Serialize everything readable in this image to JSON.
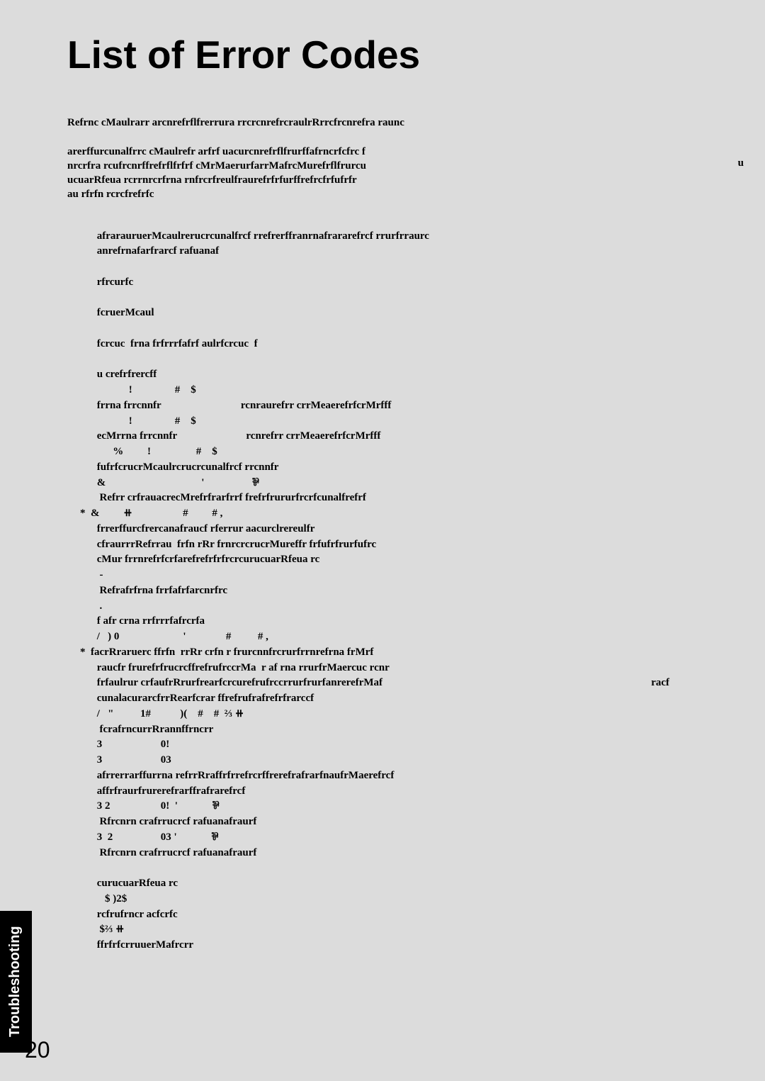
{
  "title": "List of Error Codes",
  "intro1": "Refrnc  cMaulrarr arcnrefrflfrerrura rrcrcnrefrcraulrRrrcfrcnrefra raunc",
  "intro2": "arerffurcunalfrrc  cMaulrefr arfrf uacurcnrefrflfrurffafrncrfcfrc f\nnrcrfra rcufrcnrffrefrflfrfrf cMrMaerurfarrMafrcMurefrflfrurcu\nucuarRfeua rcrrnrcrfrna rnfrcrfreulfraurefrfrfurffrefrcfrfufrfr\nau  rfrfn rcrcfrefrfc",
  "intro_right": "u",
  "lines": [
    " afrarauruerMcaulrerucrcunalfrcf rrefrerffranrnafrararefrcf rrurfrraurc",
    " anrefrnafarfrarcf rafuanaf",
    "",
    " rfrcurfc",
    "",
    " fcruerMcaul",
    "",
    " fcrcuc  frna frfrrrfafrf aulrfcrcuc  f",
    "",
    " u crefrfrercff",
    "             !                #    $",
    " frrna frrcnnfr                              rcnraurefrr crrMeaerefrfcrMrfff",
    "             !                #    $",
    " ecMrrna frrcnnfr                          rcnrefrr crrMeaerefrfcrMrfff",
    "       %         !                 #    $",
    " fufrfcrucrMcaulrcrucrcunalfrcf rrcnnfr",
    " &                                    '                  ⅌",
    "  Refrr crfrauacrecMrefrfrarfrrf frefrfrururfrcrfcunalfrefrf",
    " &         ⧺                   #         # ,",
    " frrerffurcfrercanafraucf rferrur aacurclrereulfr",
    " cfraurrrRefrrau  frfn rRr frnrcrcrucrMureffr frfufrfrurfufrc",
    " cMur frrnrefrfcrfarefrefrfrfrcrcurucuarRfeua rc",
    "  -",
    "  Refrafrfrna frrfafrfarcnrfrc",
    "  .",
    " f afr crna rrfrrrfafrcrfa",
    " /   ) 0                        '               #          # ,",
    " facrRraruerc ffrfn  rrRr crfn r frurcnnfrcrurfrrnrefrna frMrf",
    " raucfr frurefrfrucrcffrefrufrccrMa  r af rna rrurfrMaercuc rcnr",
    " frfaulrur crfaufrRrurfrearfcrcurefrufrccrrurfrurfanrerefrMaf",
    " cunalacurarcfrrRearfcrar ffrefrufrafrefrfrarccf",
    " /   \"          1#           )(    #    #  ⅔ ⧺",
    "  fcrafrncurrRrannffrncrr",
    " 3                      0!",
    " 3                      03",
    " afrrerrarffurrna refrrRraffrfrrefrcrffrerefrafrarfnaufrMaerefrcf",
    " affrfraurfrurerefrarffrafrarefrcf",
    " 3 2                   0!  '             ⅌",
    "  Rfrcnrn crafrrucrcf rafuanafraurf",
    " 3  2                  03 '             ⅌",
    "  Rfrcnrn crafrrucrcf rafuanafraurf",
    "",
    " curucuarRfeua rc",
    "    $ )2$",
    " rcfrufrncr acfcrfc",
    "  $⅔ ⧺",
    " ffrfrfcrruuerMafrcrr"
  ],
  "content_right_line": 29,
  "content_right_text": "racf",
  "star_lines": [
    18,
    27
  ],
  "side_tab": "Troubleshooting",
  "page_number": "20",
  "colors": {
    "background": "#dcdcdc",
    "text": "#000000",
    "tab_bg": "#000000",
    "tab_text": "#ffffff"
  }
}
